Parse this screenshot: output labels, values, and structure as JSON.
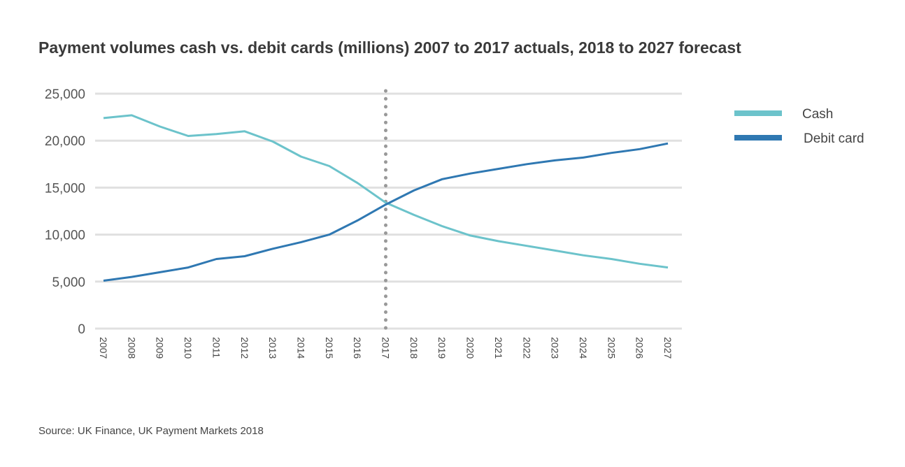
{
  "chart_data": {
    "type": "line",
    "title": "Payment volumes cash vs. debit cards (millions) 2007 to 2017 actuals, 2018 to 2027 forecast",
    "xlabel": "",
    "ylabel": "",
    "ylim": [
      0,
      25000
    ],
    "yticks": [
      "0",
      "5,000",
      "10,000",
      "15,000",
      "20,000",
      "25,000"
    ],
    "ytick_values": [
      0,
      5000,
      10000,
      15000,
      20000,
      25000
    ],
    "x": [
      "2007",
      "2008",
      "2009",
      "2010",
      "2011",
      "2012",
      "2013",
      "2014",
      "2015",
      "2016",
      "2017",
      "2018",
      "2019",
      "2020",
      "2021",
      "2022",
      "2023",
      "2024",
      "2025",
      "2026",
      "2027"
    ],
    "grid": true,
    "legend_position": "right",
    "divider_year": "2017",
    "series": [
      {
        "name": "Cash",
        "color": "#6cc3cb",
        "values": [
          22400,
          22700,
          21500,
          20500,
          20700,
          21000,
          19900,
          18300,
          17300,
          15500,
          13400,
          12100,
          10900,
          9900,
          9300,
          8800,
          8300,
          7800,
          7400,
          6900,
          6500
        ]
      },
      {
        "name": "Debit card",
        "color": "#2f78b2",
        "values": [
          5100,
          5500,
          6000,
          6500,
          7400,
          7700,
          8500,
          9200,
          10000,
          11500,
          13200,
          14700,
          15900,
          16500,
          17000,
          17500,
          17900,
          18200,
          18700,
          19100,
          19700
        ]
      }
    ],
    "source": "Source: UK Finance, UK Payment Markets 2018"
  }
}
